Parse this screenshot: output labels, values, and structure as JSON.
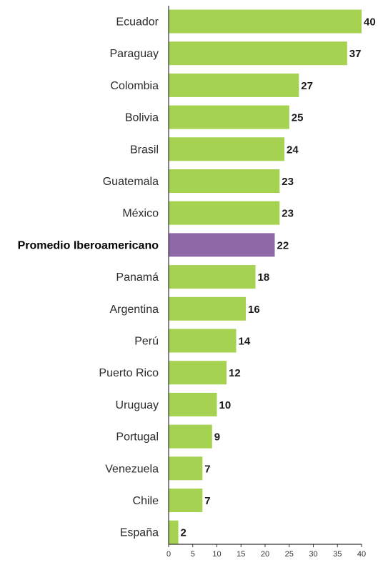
{
  "chart_data": {
    "type": "bar",
    "orientation": "horizontal",
    "categories": [
      "Ecuador",
      "Paraguay",
      "Colombia",
      "Bolivia",
      "Brasil",
      "Guatemala",
      "México",
      "Promedio Iberoamericano",
      "Panamá",
      "Argentina",
      "Perú",
      "Puerto Rico",
      "Uruguay",
      "Portugal",
      "Venezuela",
      "Chile",
      "España"
    ],
    "values": [
      40,
      37,
      27,
      25,
      24,
      23,
      23,
      22,
      18,
      16,
      14,
      12,
      10,
      9,
      7,
      7,
      2
    ],
    "highlight_category": "Promedio Iberoamericano",
    "xlim": [
      0,
      40
    ],
    "xticks": [
      0,
      5,
      10,
      15,
      20,
      25,
      30,
      35,
      40
    ],
    "grid": false,
    "colors": {
      "bar": "#a5d251",
      "highlight": "#8f68a8",
      "axis": "#333333"
    }
  }
}
